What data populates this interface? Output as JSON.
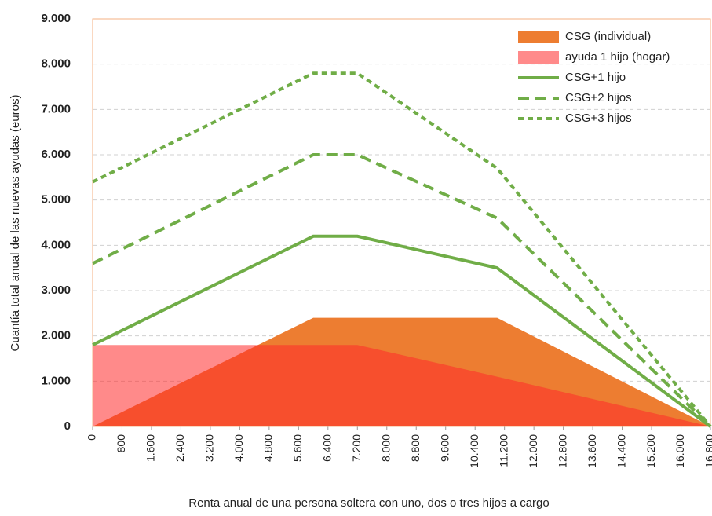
{
  "chart_data": {
    "type": "line",
    "x_label": "Renta anual de una persona soltera con uno, dos o tres hijos a cargo",
    "y_label": "Cuantía total anual de las nuevas ayudas (euros)",
    "x": [
      0,
      6000,
      7200,
      11000,
      16800
    ],
    "series": [
      {
        "name": "CSG (individual)",
        "kind": "area",
        "color": "#ed7d31",
        "values": [
          0,
          2400,
          2400,
          2400,
          0
        ]
      },
      {
        "name": "ayuda 1 hijo (hogar)",
        "kind": "area",
        "color": "#ff2a2a",
        "values": [
          1800,
          1800,
          1800,
          1100,
          0
        ]
      },
      {
        "name": "CSG+1 hijo",
        "kind": "line",
        "dash": "solid",
        "color": "#70ad47",
        "values": [
          1800,
          4200,
          4200,
          3500,
          0
        ]
      },
      {
        "name": "CSG+2 hijos",
        "kind": "line",
        "dash": "long",
        "color": "#70ad47",
        "values": [
          3600,
          6000,
          6000,
          4600,
          0
        ]
      },
      {
        "name": "CSG+3 hijos",
        "kind": "line",
        "dash": "short",
        "color": "#70ad47",
        "values": [
          5400,
          7800,
          7800,
          5700,
          0
        ]
      }
    ],
    "xlim": [
      0,
      16800
    ],
    "xticks": [
      0,
      {
        "value": 800,
        "label": "800"
      },
      {
        "value": 1600,
        "label": "1.600"
      },
      {
        "value": 2400,
        "label": "2.400"
      },
      {
        "value": 3200,
        "label": "3.200"
      },
      {
        "value": 4000,
        "label": "4.000"
      },
      {
        "value": 4800,
        "label": "4.800"
      },
      {
        "value": 5600,
        "label": "5.600"
      },
      {
        "value": 6400,
        "label": "6.400"
      },
      {
        "value": 7200,
        "label": "7.200"
      },
      {
        "value": 8000,
        "label": "8.000"
      },
      {
        "value": 8800,
        "label": "8.800"
      },
      {
        "value": 9600,
        "label": "9.600"
      },
      {
        "value": 10400,
        "label": "10.400"
      },
      {
        "value": 11200,
        "label": "11.200"
      },
      {
        "value": 12000,
        "label": "12.000"
      },
      {
        "value": 12800,
        "label": "12.800"
      },
      {
        "value": 13600,
        "label": "13.600"
      },
      {
        "value": 14400,
        "label": "14.400"
      },
      {
        "value": 15200,
        "label": "15.200"
      },
      {
        "value": 16000,
        "label": "16.000"
      },
      {
        "value": 16800,
        "label": "16.800"
      }
    ],
    "ylim": [
      0,
      9000
    ],
    "yticks": [
      0,
      {
        "value": 1000,
        "label": "1.000"
      },
      {
        "value": 2000,
        "label": "2.000"
      },
      {
        "value": 3000,
        "label": "3.000"
      },
      {
        "value": 4000,
        "label": "4.000"
      },
      {
        "value": 5000,
        "label": "5.000"
      },
      {
        "value": 6000,
        "label": "6.000"
      },
      {
        "value": 7000,
        "label": "7.000"
      },
      {
        "value": 8000,
        "label": "8.000"
      },
      {
        "value": 9000,
        "label": "9.000"
      }
    ],
    "grid": true,
    "legend": "top-right"
  }
}
